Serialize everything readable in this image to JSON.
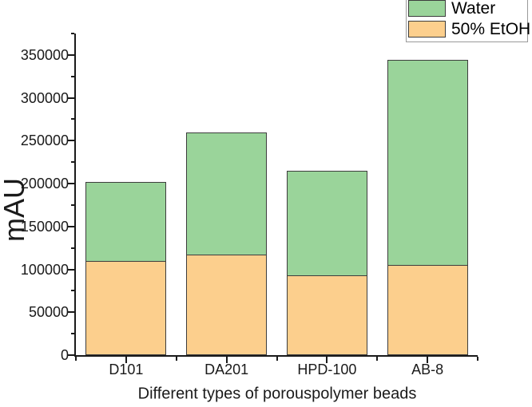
{
  "chart_data": {
    "type": "bar",
    "stacked": true,
    "title": "",
    "xlabel": "Different types of porouspolymer beads",
    "ylabel": "mAU",
    "categories": [
      "D101",
      "DA201",
      "HPD-100",
      "AB-8"
    ],
    "series": [
      {
        "name": "50% EtOH",
        "color": "#fccf8d",
        "values": [
          109000,
          116500,
          92000,
          104500
        ]
      },
      {
        "name": "Water",
        "color": "#9ad49a",
        "values": [
          93000,
          143000,
          123000,
          240000
        ]
      }
    ],
    "stack_totals": [
      202000,
      259500,
      215000,
      344500
    ],
    "ylim": [
      0,
      375000
    ],
    "y_major_step": 50000,
    "y_minor_step": 25000,
    "y_major_tick_labels": [
      "0",
      "50000",
      "100000",
      "150000",
      "200000",
      "250000",
      "300000",
      "350000"
    ],
    "grid": false,
    "legend_position": "top-right",
    "legend_order": [
      "Water",
      "50% EtOH"
    ],
    "bar_edge_color": "#3d3d3d",
    "axis_color": "#1a1a1a"
  }
}
